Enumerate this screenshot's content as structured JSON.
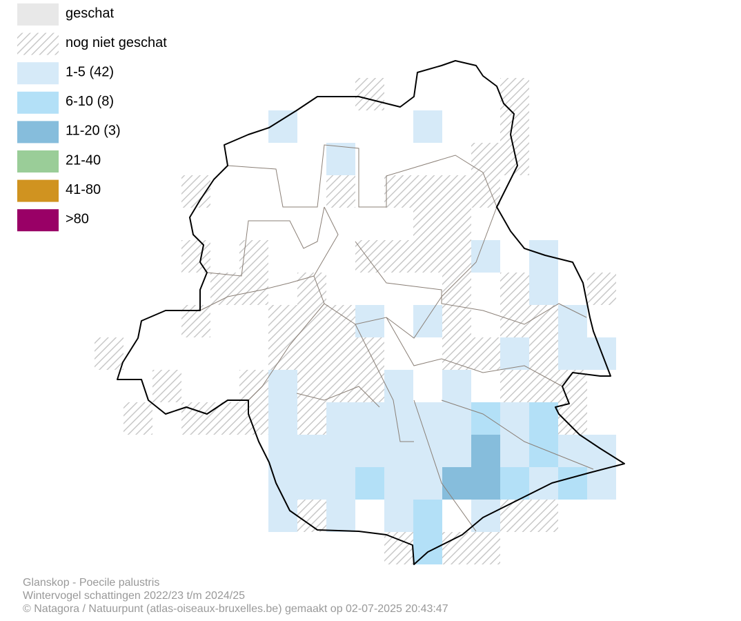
{
  "legend": [
    {
      "label": "geschat"
    },
    {
      "label": "nog niet geschat"
    },
    {
      "label": "1-5 (42)"
    },
    {
      "label": "6-10 (8)"
    },
    {
      "label": "11-20 (3)"
    },
    {
      "label": "21-40"
    },
    {
      "label": "41-80"
    },
    {
      "label": ">80"
    }
  ],
  "footer": {
    "lines": [
      "Glanskop - Poecile palustris",
      "Wintervogel schattingen 2022/23 t/m 2024/25",
      "© Natagora / Natuurpunt (atlas-oiseaux-bruxelles.be) gemaakt op 02-07-2025 20:43:47"
    ]
  }
}
